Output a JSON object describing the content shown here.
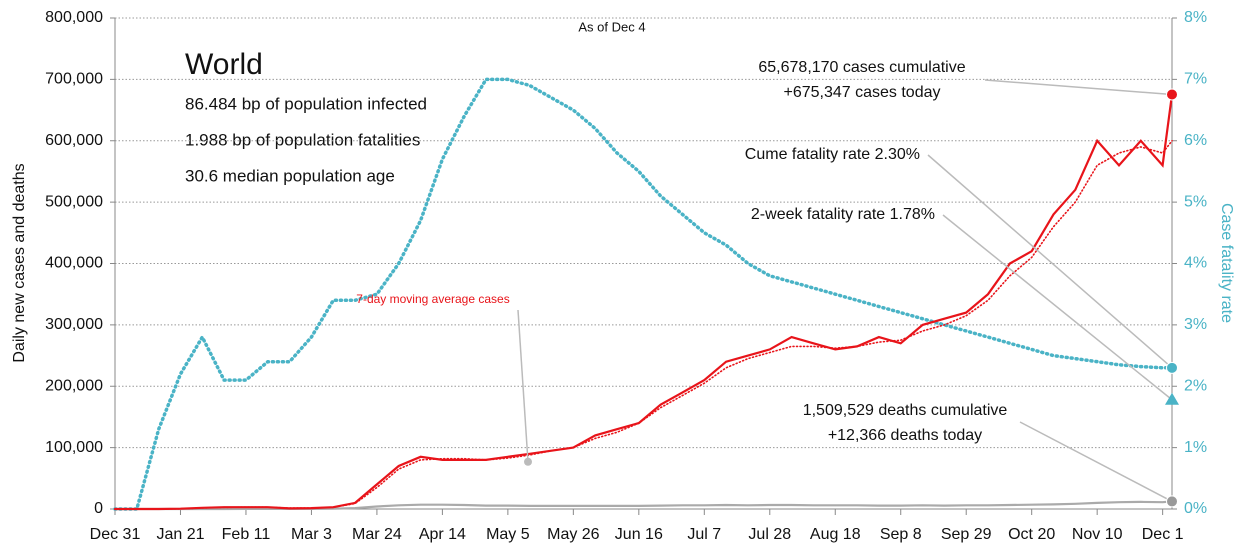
{
  "chart_data": {
    "type": "line",
    "title": "World",
    "subtitle": "As of Dec 4",
    "stats": [
      "86.484 bp of population infected",
      "1.988 bp of population fatalities",
      "30.6 median population age"
    ],
    "y_label": "Daily new cases and deaths",
    "y2_label": "Case fatality rate",
    "xlim": [
      0,
      339
    ],
    "xticks": [
      {
        "value": 0,
        "label": "Dec 31"
      },
      {
        "value": 21,
        "label": "Jan 21"
      },
      {
        "value": 42,
        "label": "Feb 11"
      },
      {
        "value": 63,
        "label": "Mar 3"
      },
      {
        "value": 84,
        "label": "Mar 24"
      },
      {
        "value": 105,
        "label": "Apr 14"
      },
      {
        "value": 126,
        "label": "May 5"
      },
      {
        "value": 147,
        "label": "May 26"
      },
      {
        "value": 168,
        "label": "Jun 16"
      },
      {
        "value": 189,
        "label": "Jul 7"
      },
      {
        "value": 210,
        "label": "Jul 28"
      },
      {
        "value": 231,
        "label": "Aug 18"
      },
      {
        "value": 252,
        "label": "Sep 8"
      },
      {
        "value": 273,
        "label": "Sep 29"
      },
      {
        "value": 294,
        "label": "Oct 20"
      },
      {
        "value": 315,
        "label": "Nov 10"
      },
      {
        "value": 336,
        "label": "Dec 1"
      }
    ],
    "ylim": [
      0,
      800000
    ],
    "yticks": [
      0,
      {
        "value": 100000,
        "label": "100,000"
      },
      {
        "value": 200000,
        "label": "200,000"
      },
      {
        "value": 300000,
        "label": "300,000"
      },
      {
        "value": 400000,
        "label": "400,000"
      },
      {
        "value": 500000,
        "label": "500,000"
      },
      {
        "value": 600000,
        "label": "600,000"
      },
      {
        "value": 700000,
        "label": "700,000"
      },
      {
        "value": 800000,
        "label": "800,000"
      }
    ],
    "y2lim": [
      0,
      8
    ],
    "y2ticks": [
      {
        "value": 0,
        "label": "0%"
      },
      {
        "value": 1,
        "label": "1%"
      },
      {
        "value": 2,
        "label": "2%"
      },
      {
        "value": 3,
        "label": "3%"
      },
      {
        "value": 4,
        "label": "4%"
      },
      {
        "value": 5,
        "label": "5%"
      },
      {
        "value": 6,
        "label": "6%"
      },
      {
        "value": 7,
        "label": "7%"
      },
      {
        "value": 8,
        "label": "8%"
      }
    ],
    "grid": true,
    "x": [
      0,
      7,
      14,
      21,
      28,
      35,
      42,
      49,
      56,
      63,
      70,
      77,
      84,
      91,
      98,
      105,
      112,
      119,
      126,
      133,
      140,
      147,
      154,
      161,
      168,
      175,
      182,
      189,
      196,
      203,
      210,
      217,
      224,
      231,
      238,
      245,
      252,
      259,
      266,
      273,
      280,
      287,
      294,
      301,
      308,
      315,
      322,
      329,
      336,
      339
    ],
    "series": [
      {
        "name": "Daily deaths",
        "color": "#aaaaaa",
        "style": "solid",
        "values": [
          0,
          0,
          0,
          20,
          50,
          80,
          100,
          100,
          100,
          150,
          500,
          1500,
          4000,
          6000,
          7000,
          7000,
          6500,
          5500,
          5500,
          5000,
          5000,
          5000,
          5000,
          5000,
          5000,
          5500,
          6000,
          6000,
          6500,
          6000,
          6500,
          6500,
          6000,
          6000,
          6000,
          5500,
          5500,
          6000,
          5500,
          6000,
          6000,
          6500,
          7000,
          7500,
          8500,
          10000,
          11000,
          11500,
          11000,
          12366
        ]
      },
      {
        "name": "Case fatality rate",
        "color": "#4ab3c6",
        "style": "dotted",
        "axis": "y2",
        "values": [
          0,
          0,
          1.3,
          2.2,
          2.8,
          2.1,
          2.1,
          2.4,
          2.4,
          2.8,
          3.4,
          3.4,
          3.5,
          4.0,
          4.7,
          5.7,
          6.4,
          7.0,
          7.0,
          6.9,
          6.7,
          6.5,
          6.2,
          5.8,
          5.5,
          5.1,
          4.8,
          4.5,
          4.3,
          4.0,
          3.8,
          3.7,
          3.6,
          3.5,
          3.4,
          3.3,
          3.2,
          3.1,
          3.0,
          2.9,
          2.8,
          2.7,
          2.6,
          2.5,
          2.45,
          2.4,
          2.35,
          2.32,
          2.3,
          2.3
        ]
      },
      {
        "name": "7-day moving average cases",
        "color": "#e8141a",
        "style": "dotted",
        "values": [
          0,
          0,
          0,
          400,
          1800,
          2800,
          3000,
          3000,
          1500,
          1500,
          2800,
          9000,
          35000,
          65000,
          80000,
          82000,
          82000,
          80000,
          83000,
          88000,
          95000,
          100000,
          115000,
          125000,
          140000,
          165000,
          185000,
          205000,
          230000,
          245000,
          255000,
          265000,
          265000,
          262000,
          265000,
          272000,
          275000,
          290000,
          300000,
          315000,
          340000,
          380000,
          410000,
          460000,
          500000,
          560000,
          580000,
          590000,
          580000,
          600000
        ]
      },
      {
        "name": "Daily cases",
        "color": "#e8141a",
        "style": "solid",
        "values": [
          0,
          0,
          0,
          500,
          2000,
          3000,
          3000,
          3000,
          1000,
          1500,
          3000,
          10000,
          40000,
          70000,
          85000,
          80000,
          80000,
          80000,
          85000,
          90000,
          95000,
          100000,
          120000,
          130000,
          140000,
          170000,
          190000,
          210000,
          240000,
          250000,
          260000,
          280000,
          270000,
          260000,
          265000,
          280000,
          270000,
          300000,
          310000,
          320000,
          350000,
          400000,
          420000,
          480000,
          520000,
          600000,
          560000,
          600000,
          560000,
          675347
        ]
      }
    ],
    "callouts": [
      {
        "lines": [
          "65,678,170 cases cumulative",
          "+675,347 cases today"
        ],
        "value": 675347,
        "color": "#e8141a",
        "marker": "circle"
      },
      {
        "lines": [
          "Cume fatality rate 2.30%"
        ],
        "value": 2.3,
        "axis": "y2",
        "color": "#4ab3c6",
        "marker": "circle"
      },
      {
        "lines": [
          "2-week fatality rate 1.78%"
        ],
        "value": 1.78,
        "axis": "y2",
        "color": "#4ab3c6",
        "marker": "triangle"
      },
      {
        "lines": [
          "1,509,529 deaths cumulative",
          "+12,366 deaths today"
        ],
        "value": 12366,
        "color": "#999999",
        "marker": "circle"
      }
    ],
    "series_note": {
      "text": "7-day moving average cases",
      "value": 77000,
      "color": "#e8141a"
    }
  }
}
